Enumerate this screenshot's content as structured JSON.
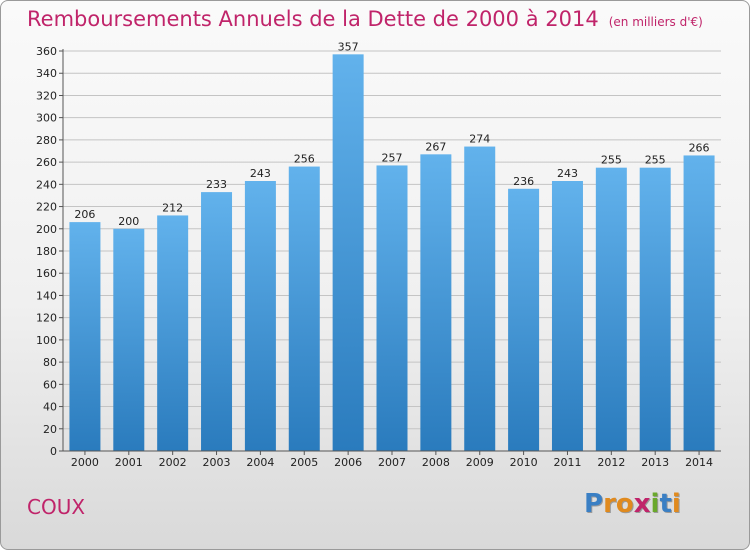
{
  "title": {
    "main": "Remboursements Annuels de la Dette de 2000 à 2014",
    "unit": "(en milliers d'€)"
  },
  "commune": "COUX",
  "logo": {
    "text": "Proxiti",
    "letters": [
      "P",
      "r",
      "o",
      "x",
      "i",
      "t",
      "i"
    ],
    "colors": [
      "#3a7fc4",
      "#e08a1e",
      "#e08a1e",
      "#c0246a",
      "#6aa82c",
      "#3a7fc4",
      "#e08a1e"
    ]
  },
  "colors": {
    "title": "#c0246a",
    "bar_top": "#62b2ec",
    "bar_bottom": "#2a7bbd",
    "grid": "#c4c4c4"
  },
  "chart_data": {
    "type": "bar",
    "categories": [
      "2000",
      "2001",
      "2002",
      "2003",
      "2004",
      "2005",
      "2006",
      "2007",
      "2008",
      "2009",
      "2010",
      "2011",
      "2012",
      "2013",
      "2014"
    ],
    "values": [
      206,
      200,
      212,
      233,
      243,
      256,
      357,
      257,
      267,
      274,
      236,
      243,
      255,
      255,
      266
    ],
    "ylim": [
      0,
      360
    ],
    "ytick_step": 20,
    "grid": true,
    "legend": "none"
  }
}
